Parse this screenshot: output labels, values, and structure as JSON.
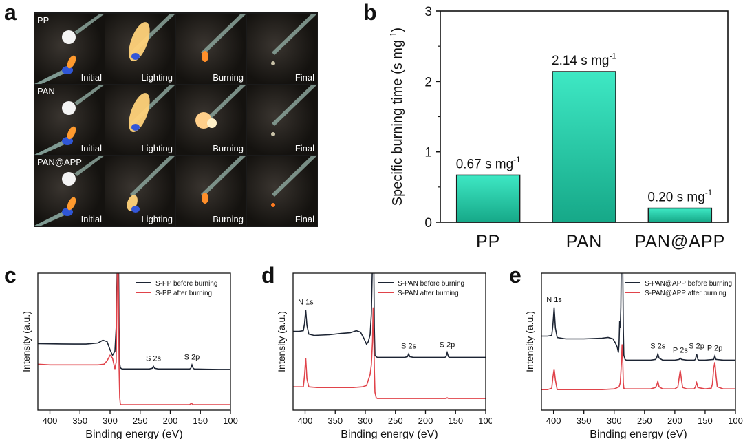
{
  "panels": {
    "a": "a",
    "b": "b",
    "c": "c",
    "d": "d",
    "e": "e"
  },
  "photo_grid": {
    "rows": [
      "PP",
      "PAN",
      "PAN@APP"
    ],
    "columns": [
      "Initial",
      "Lighting",
      "Burning",
      "Final"
    ]
  },
  "chart_data": [
    {
      "panel": "b",
      "type": "bar",
      "categories": [
        "PP",
        "PAN",
        "PAN@APP"
      ],
      "values": [
        0.67,
        2.14,
        0.2
      ],
      "data_labels": [
        "0.67 s mg",
        "2.14 s mg",
        "0.20 s mg"
      ],
      "data_label_superscript": "-1",
      "ylabel": "Specific burning time (s mg",
      "ylabel_superscript": "-1",
      "ylabel_close": ")",
      "ylim": [
        0,
        3
      ],
      "yticks": [
        "0",
        "1",
        "2",
        "3"
      ],
      "grid": false,
      "colors": {
        "bar_top": "#3ee8c4",
        "bar_bottom": "#16a888",
        "bar_edge": "#1d1d1d"
      }
    },
    {
      "panel": "c",
      "type": "line",
      "xlabel": "Binding energy (eV)",
      "ylabel": "Intensity (a.u.)",
      "xlim": [
        420,
        100
      ],
      "xticks": [
        "400",
        "350",
        "300",
        "250",
        "200",
        "150",
        "100"
      ],
      "legend": "top-right",
      "annotations": [
        {
          "text": "S 2s",
          "x": 228
        },
        {
          "text": "S 2p",
          "x": 164
        }
      ],
      "series": [
        {
          "name": "S-PP before burning",
          "color": "#1c2433",
          "x": [
            420,
            400,
            380,
            360,
            340,
            320,
            312,
            305,
            300,
            296,
            292,
            290,
            288,
            287,
            286,
            285,
            284,
            283,
            282,
            280,
            270,
            260,
            250,
            240,
            235,
            230,
            228,
            226,
            220,
            200,
            180,
            168,
            166,
            164,
            162,
            160,
            140,
            120,
            100
          ],
          "y": [
            0.485,
            0.484,
            0.483,
            0.482,
            0.482,
            0.49,
            0.51,
            0.5,
            0.44,
            0.4,
            0.43,
            0.6,
            1.1,
            1.3,
            1.1,
            0.6,
            0.34,
            0.31,
            0.305,
            0.3,
            0.3,
            0.3,
            0.3,
            0.3,
            0.3,
            0.305,
            0.32,
            0.305,
            0.3,
            0.3,
            0.3,
            0.3,
            0.305,
            0.33,
            0.305,
            0.3,
            0.298,
            0.297,
            0.297
          ]
        },
        {
          "name": "S-PP after burning",
          "color": "#e0434a",
          "x": [
            420,
            400,
            380,
            360,
            340,
            320,
            310,
            305,
            300,
            296,
            292,
            290,
            288,
            287,
            286,
            285,
            284,
            283,
            282,
            280,
            270,
            260,
            250,
            230,
            200,
            168,
            165,
            162,
            140,
            120,
            100
          ],
          "y": [
            0.335,
            0.33,
            0.33,
            0.33,
            0.33,
            0.33,
            0.335,
            0.36,
            0.4,
            0.38,
            0.3,
            0.35,
            1.0,
            1.2,
            0.8,
            0.3,
            0.09,
            0.045,
            0.04,
            0.04,
            0.04,
            0.04,
            0.04,
            0.04,
            0.04,
            0.04,
            0.05,
            0.04,
            0.04,
            0.04,
            0.04
          ]
        }
      ]
    },
    {
      "panel": "d",
      "type": "line",
      "xlabel": "Binding energy (eV)",
      "ylabel": "Intensity (a.u.)",
      "xlim": [
        420,
        100
      ],
      "xticks": [
        "400",
        "350",
        "300",
        "250",
        "200",
        "150",
        "100"
      ],
      "legend": "top-right",
      "annotations": [
        {
          "text": "N 1s",
          "x": 399
        },
        {
          "text": "S 2s",
          "x": 228
        },
        {
          "text": "S 2p",
          "x": 164
        }
      ],
      "series": [
        {
          "name": "S-PAN  before burning",
          "color": "#1c2433",
          "x": [
            420,
            410,
            403,
            401,
            399,
            397,
            394,
            385,
            360,
            340,
            325,
            315,
            308,
            302,
            298,
            295,
            292,
            290,
            288,
            287,
            286,
            285,
            284,
            282,
            280,
            270,
            250,
            235,
            230,
            228,
            226,
            220,
            200,
            180,
            168,
            166,
            164,
            162,
            160,
            140,
            120,
            100
          ],
          "y": [
            0.575,
            0.575,
            0.58,
            0.63,
            0.73,
            0.62,
            0.555,
            0.545,
            0.55,
            0.56,
            0.565,
            0.58,
            0.57,
            0.52,
            0.48,
            0.5,
            0.55,
            0.7,
            1.1,
            1.3,
            1.1,
            0.6,
            0.4,
            0.39,
            0.385,
            0.385,
            0.385,
            0.385,
            0.39,
            0.41,
            0.39,
            0.385,
            0.385,
            0.385,
            0.385,
            0.39,
            0.42,
            0.39,
            0.385,
            0.385,
            0.385,
            0.385
          ]
        },
        {
          "name": "S-PAN  after burning",
          "color": "#e0434a",
          "x": [
            420,
            410,
            403,
            401,
            399,
            397,
            394,
            380,
            360,
            340,
            320,
            305,
            298,
            292,
            290,
            288,
            287,
            286,
            285,
            284,
            282,
            280,
            260,
            240,
            200,
            166,
            164,
            162,
            120,
            100
          ],
          "y": [
            0.17,
            0.17,
            0.17,
            0.25,
            0.38,
            0.23,
            0.17,
            0.165,
            0.165,
            0.165,
            0.165,
            0.17,
            0.18,
            0.26,
            0.33,
            0.5,
            0.75,
            0.55,
            0.3,
            0.13,
            0.09,
            0.085,
            0.085,
            0.085,
            0.085,
            0.085,
            0.09,
            0.085,
            0.085,
            0.085
          ]
        }
      ]
    },
    {
      "panel": "e",
      "type": "line",
      "xlabel": "Binding energy (eV)",
      "ylabel": "Intensity (a.u.)",
      "xlim": [
        420,
        100
      ],
      "xticks": [
        "400",
        "350",
        "300",
        "250",
        "200",
        "150",
        "100"
      ],
      "legend": "top-right",
      "annotations": [
        {
          "text": "N 1s",
          "x": 399
        },
        {
          "text": "S 2s",
          "x": 228
        },
        {
          "text": "P 2s",
          "x": 191
        },
        {
          "text": "S 2p",
          "x": 164
        },
        {
          "text": "P 2p",
          "x": 134
        }
      ],
      "series": [
        {
          "name": "S-PAN@APP before burning",
          "color": "#1c2433",
          "x": [
            420,
            410,
            403,
            401,
            399,
            397,
            394,
            380,
            350,
            320,
            310,
            302,
            298,
            295,
            293,
            292,
            291,
            290,
            289,
            288,
            287,
            286,
            285,
            284,
            282,
            280,
            260,
            240,
            232,
            230,
            228,
            226,
            220,
            200,
            193,
            191,
            189,
            180,
            168,
            166,
            164,
            162,
            160,
            150,
            136,
            134,
            132,
            120,
            100
          ],
          "y": [
            0.54,
            0.54,
            0.545,
            0.62,
            0.75,
            0.6,
            0.53,
            0.52,
            0.52,
            0.525,
            0.53,
            0.52,
            0.49,
            0.46,
            0.42,
            0.48,
            0.65,
            0.6,
            0.75,
            1.2,
            1.35,
            1.1,
            0.6,
            0.4,
            0.37,
            0.365,
            0.365,
            0.365,
            0.37,
            0.38,
            0.41,
            0.38,
            0.365,
            0.365,
            0.37,
            0.38,
            0.37,
            0.365,
            0.365,
            0.37,
            0.41,
            0.37,
            0.365,
            0.365,
            0.37,
            0.395,
            0.37,
            0.365,
            0.365
          ]
        },
        {
          "name": "S-PAN@APP after burning",
          "color": "#e0434a",
          "x": [
            420,
            410,
            403,
            401,
            399,
            397,
            394,
            380,
            350,
            320,
            300,
            292,
            290,
            288,
            287,
            286,
            285,
            284,
            282,
            270,
            240,
            232,
            230,
            228,
            226,
            220,
            200,
            195,
            193,
            191,
            189,
            187,
            180,
            168,
            166,
            164,
            162,
            150,
            140,
            138,
            136,
            134,
            132,
            130,
            120,
            100
          ],
          "y": [
            0.15,
            0.15,
            0.16,
            0.24,
            0.3,
            0.22,
            0.15,
            0.15,
            0.15,
            0.15,
            0.155,
            0.17,
            0.2,
            0.35,
            0.48,
            0.38,
            0.2,
            0.16,
            0.155,
            0.155,
            0.155,
            0.165,
            0.18,
            0.21,
            0.17,
            0.155,
            0.155,
            0.17,
            0.23,
            0.29,
            0.22,
            0.165,
            0.155,
            0.155,
            0.17,
            0.2,
            0.165,
            0.155,
            0.16,
            0.19,
            0.3,
            0.35,
            0.25,
            0.17,
            0.155,
            0.155
          ]
        }
      ]
    }
  ]
}
